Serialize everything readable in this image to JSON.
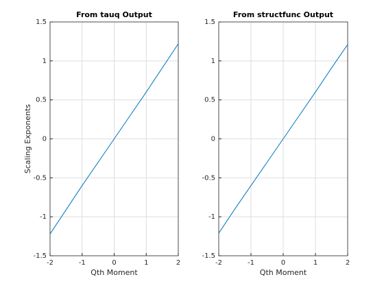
{
  "chart_data": [
    {
      "type": "line",
      "title": "From tauq Output",
      "xlabel": "Qth Moment",
      "ylabel": "Scaling Exponents",
      "x": [
        -2,
        -1.5,
        -1,
        -0.5,
        0,
        0.5,
        1,
        1.5,
        2
      ],
      "values": [
        -1.22,
        -0.91,
        -0.6,
        -0.3,
        0,
        0.3,
        0.6,
        0.91,
        1.22
      ],
      "color": "#0072bd",
      "xlim": [
        -2,
        2
      ],
      "xticks": [
        -2,
        -1,
        0,
        1,
        2
      ],
      "ylim": [
        -1.5,
        1.5
      ],
      "yticks": [
        -1.5,
        -1,
        -0.5,
        0,
        0.5,
        1,
        1.5
      ],
      "grid": true
    },
    {
      "type": "line",
      "title": "From structfunc Output",
      "xlabel": "Qth Moment",
      "x": [
        -2,
        -1.5,
        -1,
        -0.5,
        0,
        0.5,
        1,
        1.5,
        2
      ],
      "values": [
        -1.21,
        -0.9,
        -0.6,
        -0.3,
        0,
        0.3,
        0.6,
        0.91,
        1.21
      ],
      "color": "#0072bd",
      "xlim": [
        -2,
        2
      ],
      "xticks": [
        -2,
        -1,
        0,
        1,
        2
      ],
      "ylim": [
        -1.5,
        1.5
      ],
      "yticks": [
        -1.5,
        -1,
        -0.5,
        0,
        0.5,
        1,
        1.5
      ],
      "grid": true
    }
  ]
}
